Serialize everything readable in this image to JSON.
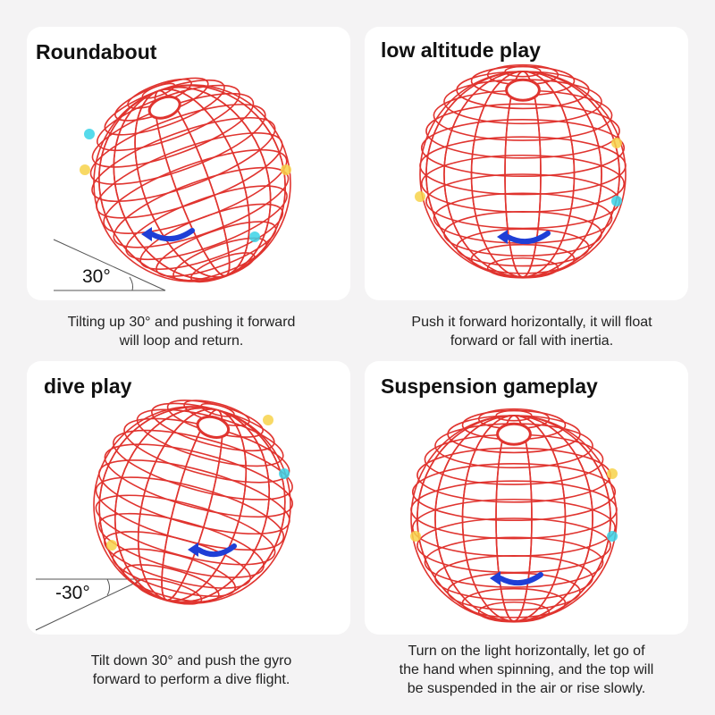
{
  "colors": {
    "background": "#f4f3f4",
    "wireframe": "#e0342f",
    "arrow_blue": "#1f3fd6",
    "arrow_cyan": "#38d4e8",
    "arrow_yellow": "#f7d24a"
  },
  "panels": [
    {
      "title": "Roundabout",
      "caption_lines": [
        "Tilting up 30° and pushing it forward",
        "will loop and return."
      ],
      "angle_label": "30°"
    },
    {
      "title": "low altitude play",
      "caption_lines": [
        "Push it forward horizontally, it will float",
        "forward or fall with inertia."
      ]
    },
    {
      "title": "dive play",
      "caption_lines": [
        "Tilt down 30° and push the gyro",
        "forward to perform a dive flight."
      ],
      "angle_label": "-30°"
    },
    {
      "title": "Suspension gameplay",
      "caption_lines": [
        "Turn on the light horizontally, let go of",
        "the hand when spinning, and the top will",
        "be suspended in the air or rise slowly."
      ]
    }
  ]
}
